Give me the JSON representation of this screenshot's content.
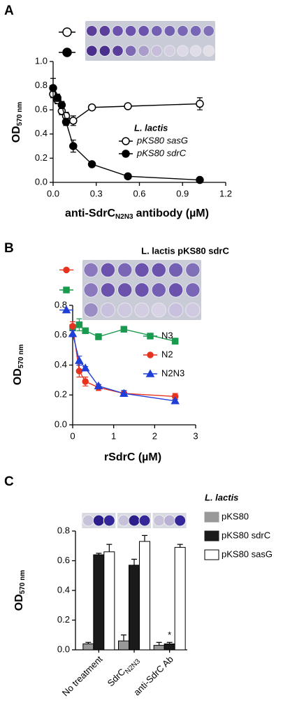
{
  "chart_data": [
    {
      "type": "line",
      "panel_label": "A",
      "ylabel": {
        "text": "OD",
        "sub": "570 nm"
      },
      "xlabel": {
        "text": "anti-SdrC",
        "sub": "N2N3",
        "after": "antibody (µM)"
      },
      "legend_title": "L. lactis",
      "x": [
        0,
        0.03,
        0.06,
        0.09,
        0.14,
        0.27,
        0.52,
        1.02
      ],
      "series": [
        {
          "name": "pKS80 sasG",
          "color": "#000000",
          "marker": "circle",
          "filled": false,
          "values": [
            0.73,
            0.68,
            0.59,
            0.55,
            0.51,
            0.62,
            0.63,
            0.65
          ],
          "errors": [
            0.03,
            0.03,
            0.03,
            0.03,
            0.04,
            0.02,
            0.02,
            0.05
          ]
        },
        {
          "name": "pKS80 sdrC",
          "color": "#000000",
          "marker": "circle",
          "filled": true,
          "values": [
            0.78,
            0.7,
            0.64,
            0.5,
            0.3,
            0.15,
            0.05,
            0.02
          ],
          "errors": [
            0.08,
            0.03,
            0.03,
            0.03,
            0.05,
            0.02,
            0.01,
            0.01
          ]
        }
      ],
      "xlim": [
        0,
        1.2
      ],
      "xticks": [
        {
          "value": 0,
          "label": "0.0"
        },
        {
          "value": 0.3,
          "label": "0.3"
        },
        {
          "value": 0.6,
          "label": "0.6"
        },
        {
          "value": 0.9,
          "label": "0.9"
        },
        {
          "value": 1.2,
          "label": "1.2"
        }
      ],
      "ylim": [
        0,
        1
      ],
      "yticks": [
        {
          "value": 0,
          "label": "0.0"
        },
        {
          "value": 0.2,
          "label": "0.2"
        },
        {
          "value": 0.4,
          "label": "0.4"
        },
        {
          "value": 0.6,
          "label": "0.6"
        },
        {
          "value": 0.8,
          "label": "0.8"
        },
        {
          "value": 1,
          "label": "1.0"
        }
      ]
    },
    {
      "type": "line",
      "panel_label": "B",
      "title": "L. lactis pKS80 sdrC",
      "ylabel": {
        "text": "OD",
        "sub": "570 nm"
      },
      "xlabel": {
        "text": "rSdrC (µM)"
      },
      "x": [
        0,
        0.16,
        0.31,
        0.63,
        1.25,
        2.5
      ],
      "series": [
        {
          "name": "N3",
          "color": "#1a9a4e",
          "marker": "square",
          "filled": true,
          "values": [
            0.65,
            0.67,
            0.63,
            0.59,
            0.64,
            0.56
          ],
          "errors": [
            0.02,
            0.04,
            0.01,
            0.02,
            0.01,
            0.02
          ]
        },
        {
          "name": "N2",
          "color": "#e8321e",
          "marker": "circle",
          "filled": true,
          "values": [
            0.66,
            0.36,
            0.29,
            0.25,
            0.21,
            0.19
          ],
          "errors": [
            0.03,
            0.04,
            0.03,
            0.02,
            0.01,
            0.02
          ]
        },
        {
          "name": "N2N3",
          "color": "#1f3fd8",
          "marker": "triangle",
          "filled": true,
          "values": [
            0.61,
            0.43,
            0.38,
            0.26,
            0.21,
            0.16
          ],
          "errors": [
            0.02,
            0.03,
            0.01,
            0.01,
            0.02,
            0.01
          ]
        }
      ],
      "xlim": [
        0,
        3
      ],
      "xticks": [
        0,
        1,
        2,
        3
      ],
      "ylim": [
        0,
        0.8
      ],
      "yticks": [
        {
          "value": 0,
          "label": "0.0"
        },
        {
          "value": 0.2,
          "label": "0.2"
        },
        {
          "value": 0.4,
          "label": "0.4"
        },
        {
          "value": 0.6,
          "label": "0.6"
        },
        {
          "value": 0.8,
          "label": "0.8"
        }
      ]
    },
    {
      "type": "bar",
      "panel_label": "C",
      "ylabel": {
        "text": "OD",
        "sub": "570 nm"
      },
      "legend_title": "L. lactis",
      "categories": [
        {
          "text": "No treatment"
        },
        {
          "text": "SdrC",
          "sub": "N2N3"
        },
        {
          "text": "anti-SdrC Ab"
        }
      ],
      "series": [
        {
          "name": "pKS80",
          "color": "#999999",
          "values": [
            0.04,
            0.06,
            0.03
          ],
          "errors": [
            0.01,
            0.04,
            0.02
          ]
        },
        {
          "name": "pKS80 sdrC",
          "color": "#1a1a1a",
          "values": [
            0.64,
            0.57,
            0.04
          ],
          "errors": [
            0.01,
            0.04,
            0.01
          ]
        },
        {
          "name": "pKS80 sasG",
          "color": "#ffffff",
          "values": [
            0.66,
            0.73,
            0.69
          ],
          "errors": [
            0.05,
            0.04,
            0.02
          ]
        }
      ],
      "annotation": "*",
      "ylim": [
        0,
        0.8
      ],
      "yticks": [
        {
          "value": 0,
          "label": "0.0"
        },
        {
          "value": 0.2,
          "label": "0.2"
        },
        {
          "value": 0.4,
          "label": "0.4"
        },
        {
          "value": 0.6,
          "label": "0.6"
        },
        {
          "value": 0.8,
          "label": "0.8"
        }
      ]
    }
  ]
}
